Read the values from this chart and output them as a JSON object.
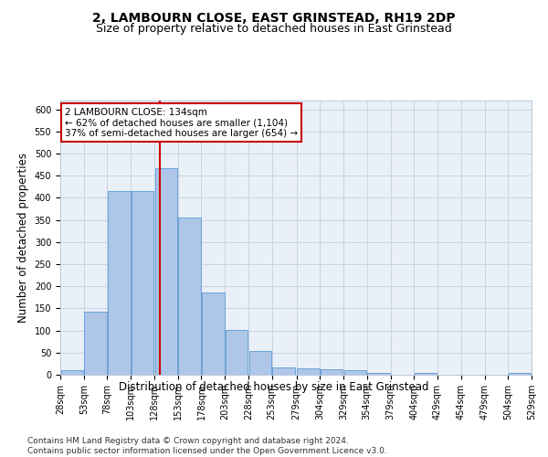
{
  "title": "2, LAMBOURN CLOSE, EAST GRINSTEAD, RH19 2DP",
  "subtitle": "Size of property relative to detached houses in East Grinstead",
  "xlabel": "Distribution of detached houses by size in East Grinstead",
  "ylabel": "Number of detached properties",
  "bins": [
    28,
    53,
    78,
    103,
    128,
    153,
    178,
    203,
    228,
    253,
    279,
    304,
    329,
    354,
    379,
    404,
    429,
    454,
    479,
    504,
    529
  ],
  "bar_heights": [
    10,
    143,
    416,
    416,
    468,
    355,
    185,
    102,
    54,
    16,
    15,
    12,
    10,
    5,
    0,
    5,
    0,
    0,
    0,
    5
  ],
  "bar_color": "#aec6e8",
  "bar_edge_color": "#5b9bd5",
  "vline_x": 134,
  "vline_color": "#cc0000",
  "annotation_text": "2 LAMBOURN CLOSE: 134sqm\n← 62% of detached houses are smaller (1,104)\n37% of semi-detached houses are larger (654) →",
  "annotation_box_color": "#cc0000",
  "ylim": [
    0,
    620
  ],
  "yticks": [
    0,
    50,
    100,
    150,
    200,
    250,
    300,
    350,
    400,
    450,
    500,
    550,
    600
  ],
  "footnote": "Contains HM Land Registry data © Crown copyright and database right 2024.\nContains public sector information licensed under the Open Government Licence v3.0.",
  "background_color": "#ffffff",
  "grid_color": "#c8d4e3",
  "title_fontsize": 10,
  "subtitle_fontsize": 9,
  "axis_label_fontsize": 8.5,
  "tick_fontsize": 7,
  "annotation_fontsize": 7.5,
  "footnote_fontsize": 6.5
}
